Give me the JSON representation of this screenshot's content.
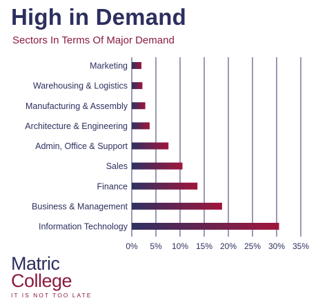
{
  "header": {
    "title": "High in Demand",
    "subtitle": "Sectors In Terms Of Major Demand"
  },
  "logo": {
    "line1": "Matric",
    "line2": "College",
    "tagline": "IT IS NOT TOO LATE"
  },
  "colors": {
    "navy": "#2c2f5e",
    "crimson": "#8b1a3d",
    "bar_start": "#2e3162",
    "bar_end": "#a0163c",
    "gridline": "#33336b"
  },
  "chart_data": {
    "type": "bar",
    "orientation": "horizontal",
    "title": "High in Demand",
    "subtitle": "Sectors In Terms Of Major Demand",
    "categories": [
      "Marketing",
      "Warehousing & Logistics",
      "Manufacturing & Assembly",
      "Architecture & Engineering",
      "Admin, Office & Support",
      "Sales",
      "Finance",
      "Business & Management",
      "Information Technology"
    ],
    "values": [
      2,
      2.2,
      2.8,
      3.7,
      7.6,
      10.5,
      13.6,
      18.7,
      30.5
    ],
    "xlim": [
      0,
      35
    ],
    "xticks": [
      "0%",
      "5%",
      "10%",
      "15%",
      "20%",
      "25%",
      "30%",
      "35%"
    ],
    "grid": true
  }
}
